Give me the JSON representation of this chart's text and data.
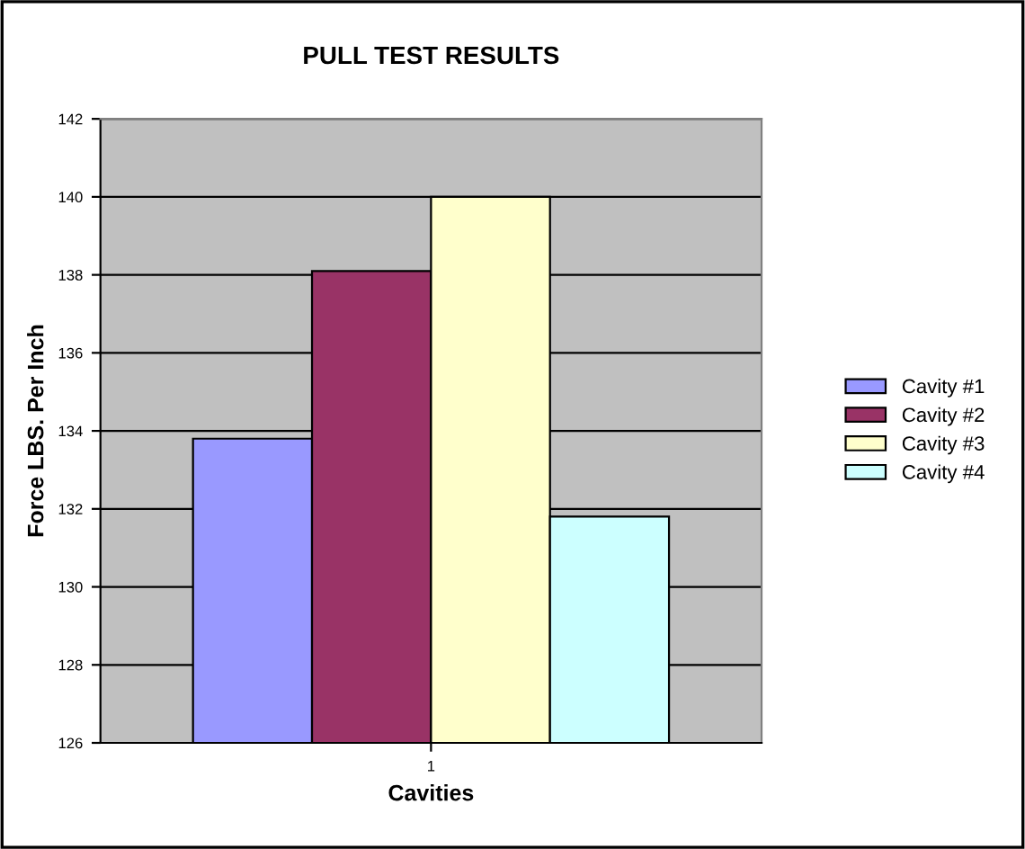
{
  "chart_data": {
    "type": "bar",
    "title": "PULL TEST RESULTS",
    "xlabel": "Cavities",
    "ylabel": "Force LBS. Per Inch",
    "categories": [
      "1"
    ],
    "series": [
      {
        "name": "Cavity #1",
        "color": "#9999ff",
        "values": [
          133.8
        ]
      },
      {
        "name": "Cavity #2",
        "color": "#993366",
        "values": [
          138.1
        ]
      },
      {
        "name": "Cavity #3",
        "color": "#ffffcc",
        "values": [
          140
        ]
      },
      {
        "name": "Cavity #4",
        "color": "#ccffff",
        "values": [
          131.8
        ]
      }
    ],
    "ylim": [
      126,
      142
    ],
    "yticks": [
      126,
      128,
      130,
      132,
      134,
      136,
      138,
      140,
      142
    ],
    "grid": "y",
    "legend": "right"
  }
}
